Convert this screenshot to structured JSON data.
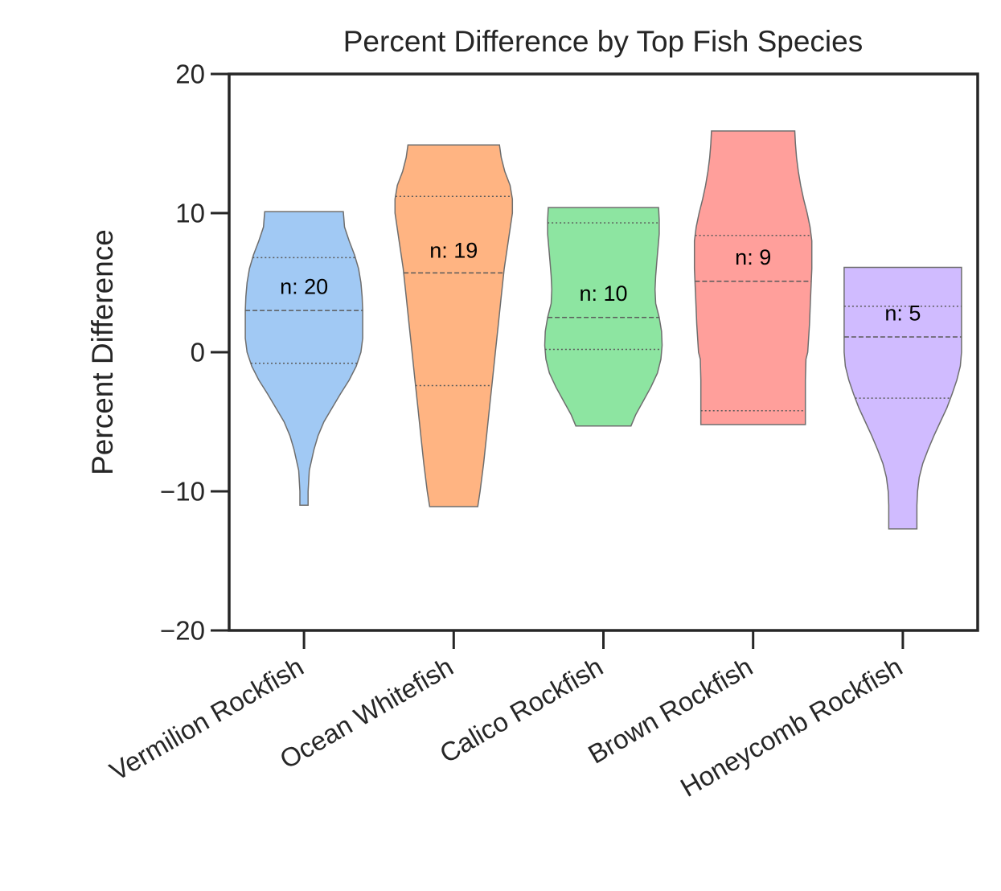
{
  "chart_data": {
    "type": "violin",
    "title": "Percent Difference by Top Fish Species",
    "xlabel": "",
    "ylabel": "Percent Difference",
    "ylim": [
      -20,
      20
    ],
    "yticks": [
      -20,
      -10,
      0,
      10,
      20
    ],
    "ytick_labels": [
      "−20",
      "−10",
      "0",
      "10",
      "20"
    ],
    "grid": false,
    "categories": [
      "Vermilion Rockfish",
      "Ocean Whitefish",
      "Calico Rockfish",
      "Brown Rockfish",
      "Honeycomb Rockfish"
    ],
    "colors": [
      "#a1c9f4",
      "#ffb482",
      "#8de5a1",
      "#ff9f9b",
      "#d0bbff"
    ],
    "n_labels": [
      "n: 20",
      "n: 19",
      "n: 10",
      "n: 9",
      "n: 5"
    ],
    "n_label_y": [
      4.6,
      7.2,
      4.1,
      6.7,
      2.7
    ],
    "series": [
      {
        "category": "Vermilion Rockfish",
        "n": 20,
        "min": -11.0,
        "q1": -0.8,
        "median": 3.0,
        "q3": 6.8,
        "max": 10.1,
        "profile": [
          [
            -11.0,
            0.07
          ],
          [
            -10.0,
            0.07
          ],
          [
            -8.5,
            0.09
          ],
          [
            -7.0,
            0.17
          ],
          [
            -6.0,
            0.24
          ],
          [
            -5.0,
            0.34
          ],
          [
            -4.0,
            0.48
          ],
          [
            -3.0,
            0.62
          ],
          [
            -2.0,
            0.77
          ],
          [
            -1.0,
            0.89
          ],
          [
            0.0,
            0.97
          ],
          [
            1.0,
            1.0
          ],
          [
            2.0,
            1.0
          ],
          [
            3.0,
            1.0
          ],
          [
            4.0,
            0.99
          ],
          [
            5.0,
            0.97
          ],
          [
            6.0,
            0.93
          ],
          [
            7.0,
            0.86
          ],
          [
            8.0,
            0.77
          ],
          [
            9.0,
            0.69
          ],
          [
            10.1,
            0.67
          ]
        ]
      },
      {
        "category": "Ocean Whitefish",
        "n": 19,
        "min": -11.1,
        "q1": -2.4,
        "median": 5.7,
        "q3": 11.2,
        "max": 14.9,
        "profile": [
          [
            -11.1,
            0.41
          ],
          [
            -10.0,
            0.45
          ],
          [
            -8.0,
            0.51
          ],
          [
            -6.0,
            0.56
          ],
          [
            -4.0,
            0.61
          ],
          [
            -2.0,
            0.66
          ],
          [
            0.0,
            0.71
          ],
          [
            2.0,
            0.76
          ],
          [
            4.0,
            0.81
          ],
          [
            6.0,
            0.86
          ],
          [
            8.0,
            0.93
          ],
          [
            10.0,
            1.0
          ],
          [
            11.0,
            1.0
          ],
          [
            12.0,
            0.96
          ],
          [
            13.0,
            0.87
          ],
          [
            14.0,
            0.81
          ],
          [
            14.9,
            0.78
          ]
        ]
      },
      {
        "category": "Calico Rockfish",
        "n": 10,
        "min": -5.3,
        "q1": 0.2,
        "median": 2.5,
        "q3": 9.3,
        "max": 10.4,
        "profile": [
          [
            -5.3,
            0.47
          ],
          [
            -4.5,
            0.55
          ],
          [
            -3.5,
            0.68
          ],
          [
            -2.5,
            0.81
          ],
          [
            -1.5,
            0.92
          ],
          [
            -0.5,
            0.98
          ],
          [
            0.5,
            1.0
          ],
          [
            1.5,
            0.99
          ],
          [
            2.5,
            0.95
          ],
          [
            3.5,
            0.89
          ],
          [
            4.5,
            0.88
          ],
          [
            5.5,
            0.89
          ],
          [
            6.5,
            0.91
          ],
          [
            7.5,
            0.93
          ],
          [
            8.5,
            0.95
          ],
          [
            9.5,
            0.95
          ],
          [
            10.4,
            0.94
          ]
        ]
      },
      {
        "category": "Brown Rockfish",
        "n": 9,
        "min": -5.2,
        "q1": -4.2,
        "median": 5.1,
        "q3": 8.4,
        "max": 15.9,
        "profile": [
          [
            -5.2,
            0.89
          ],
          [
            -4.0,
            0.89
          ],
          [
            -2.0,
            0.89
          ],
          [
            -0.5,
            0.9
          ],
          [
            0.0,
            0.93
          ],
          [
            2.0,
            0.96
          ],
          [
            4.0,
            0.98
          ],
          [
            6.0,
            1.0
          ],
          [
            8.0,
            1.0
          ],
          [
            9.0,
            0.97
          ],
          [
            10.0,
            0.92
          ],
          [
            11.0,
            0.86
          ],
          [
            12.0,
            0.81
          ],
          [
            13.0,
            0.77
          ],
          [
            14.0,
            0.74
          ],
          [
            15.0,
            0.72
          ],
          [
            15.9,
            0.71
          ]
        ]
      },
      {
        "category": "Honeycomb Rockfish",
        "n": 5,
        "min": -12.7,
        "q1": -3.3,
        "median": 1.1,
        "q3": 3.3,
        "max": 6.1,
        "profile": [
          [
            -12.7,
            0.24
          ],
          [
            -11.0,
            0.24
          ],
          [
            -10.0,
            0.25
          ],
          [
            -9.0,
            0.28
          ],
          [
            -8.0,
            0.34
          ],
          [
            -7.0,
            0.43
          ],
          [
            -6.0,
            0.53
          ],
          [
            -5.0,
            0.64
          ],
          [
            -4.0,
            0.75
          ],
          [
            -3.0,
            0.84
          ],
          [
            -2.0,
            0.92
          ],
          [
            -1.0,
            0.98
          ],
          [
            0.0,
            1.0
          ],
          [
            1.0,
            1.0
          ],
          [
            2.0,
            1.0
          ],
          [
            3.0,
            1.0
          ],
          [
            4.0,
            1.0
          ],
          [
            5.0,
            1.0
          ],
          [
            6.1,
            1.0
          ]
        ]
      }
    ]
  }
}
